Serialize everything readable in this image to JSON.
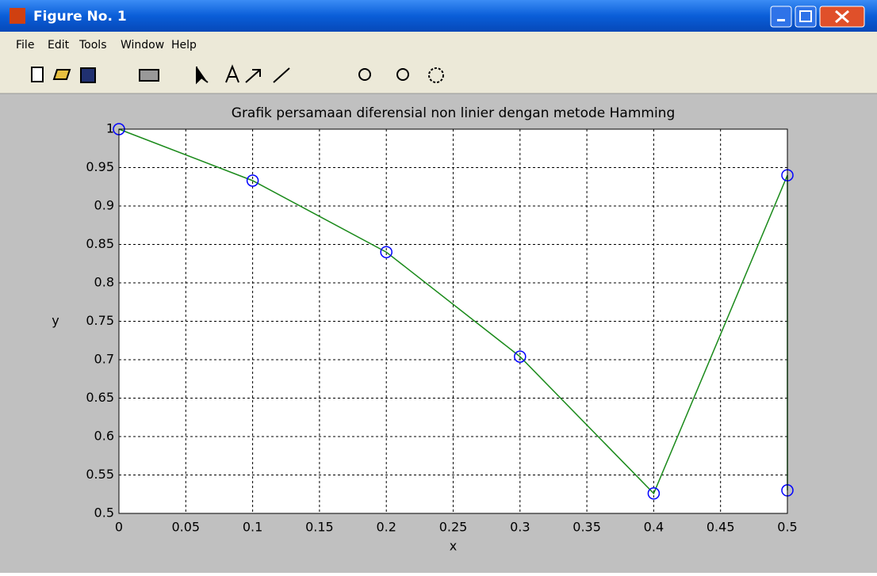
{
  "window": {
    "title": "Figure No. 1",
    "menu": [
      "File",
      "Edit",
      "Tools",
      "Window",
      "Help"
    ]
  },
  "chart_data": {
    "type": "line",
    "title": "Grafik persamaan diferensial non linier dengan metode Hamming",
    "x_label": "x",
    "y_label": "y",
    "x": [
      0,
      0.1,
      0.2,
      0.3,
      0.4,
      0.5,
      0.5
    ],
    "series": [
      {
        "color": "#1a8a1a",
        "marker_color": "#0000ff",
        "values": [
          1,
          0.933,
          0.84,
          0.704,
          0.526,
          0.94,
          0.53
        ]
      }
    ],
    "xlim": [
      0,
      0.5
    ],
    "xticks": [
      0,
      0.05,
      0.1,
      0.15,
      0.2,
      0.25,
      0.3,
      0.35,
      0.4,
      0.45,
      0.5
    ],
    "ylim": [
      0.5,
      1
    ],
    "yticks": [
      0.5,
      0.55,
      0.6,
      0.65,
      0.7,
      0.75,
      0.8,
      0.85,
      0.9,
      0.95,
      1
    ],
    "grid": true
  }
}
